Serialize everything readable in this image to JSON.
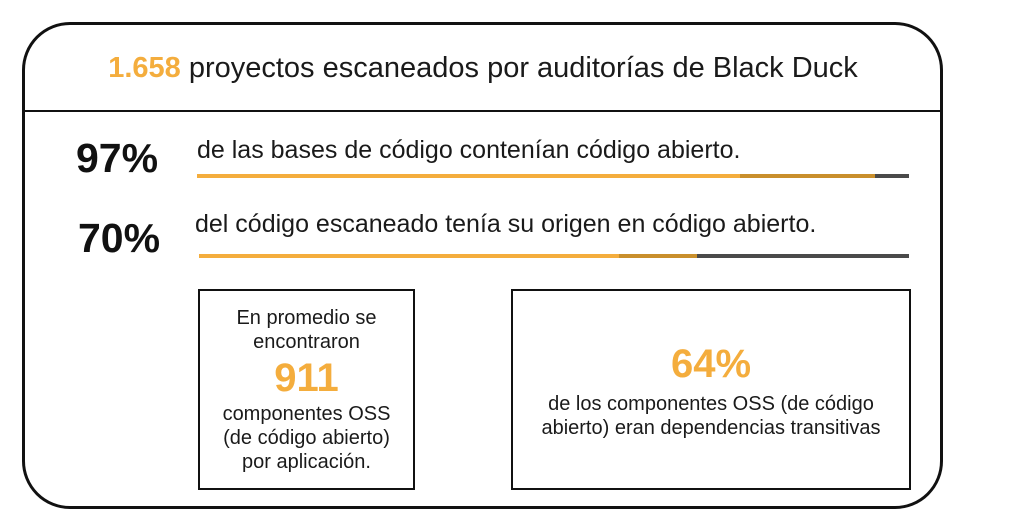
{
  "header": {
    "number": "1.658",
    "text": " proyectos escaneados por auditorías de Black Duck"
  },
  "stats": [
    {
      "percent": "97%",
      "text": "de las bases de código contenían código abierto."
    },
    {
      "percent": "70%",
      "text": "del código escaneado tenía su origen en código abierto."
    }
  ],
  "box_components": {
    "line1": "En promedio se",
    "line2": "encontraron",
    "number": "911",
    "line3": "componentes OSS",
    "line4": "(de código abierto)",
    "line5": "por aplicación."
  },
  "box_transitive": {
    "percent": "64%",
    "line1": "de los componentes OSS (de código",
    "line2": "abierto) eran dependencias transitivas"
  },
  "colors": {
    "accent": "#f4ad3d",
    "accent_dark": "#c98f2c",
    "bar_gray": "#4a4a4a",
    "text": "#1a1a1a"
  }
}
